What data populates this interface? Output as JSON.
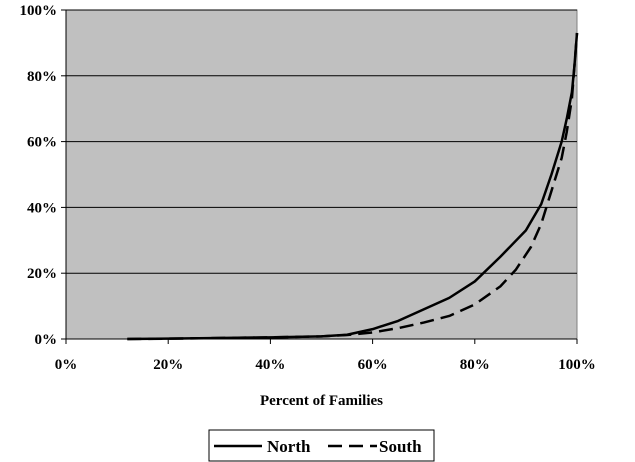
{
  "chart_data": {
    "type": "line",
    "title": "",
    "xlabel": "Percent of Families",
    "ylabel": "",
    "xlim": [
      0,
      100
    ],
    "ylim": [
      0,
      100
    ],
    "x_ticks": [
      0,
      20,
      40,
      60,
      80,
      100
    ],
    "y_ticks": [
      0,
      20,
      40,
      60,
      80,
      100
    ],
    "x_tick_labels": [
      "0%",
      "20%",
      "40%",
      "60%",
      "80%",
      "100%"
    ],
    "y_tick_labels": [
      "0%",
      "20%",
      "40%",
      "60%",
      "80%",
      "100%"
    ],
    "grid": "horizontal",
    "plot_background": "#c0c0c0",
    "legend_position": "bottom",
    "series": [
      {
        "name": "North",
        "line_style": "solid",
        "color": "#000000",
        "x": [
          12,
          20,
          30,
          40,
          50,
          55,
          60,
          65,
          70,
          75,
          80,
          85,
          90,
          93,
          95,
          97,
          98,
          99,
          99.5,
          100
        ],
        "y": [
          0,
          0.1,
          0.3,
          0.5,
          0.8,
          1.3,
          3,
          5.5,
          9,
          12.5,
          17.5,
          25,
          33,
          41,
          50,
          60,
          67,
          75,
          83,
          93
        ]
      },
      {
        "name": "South",
        "line_style": "dashed",
        "color": "#000000",
        "x": [
          12,
          20,
          30,
          40,
          50,
          55,
          60,
          65,
          70,
          75,
          80,
          85,
          88,
          91,
          93,
          95,
          97,
          98,
          99,
          99.5,
          100
        ],
        "y": [
          0,
          0.1,
          0.3,
          0.5,
          0.8,
          1.2,
          2,
          3.3,
          5,
          7,
          10.5,
          16,
          21,
          28,
          35,
          45,
          55,
          63,
          73,
          83,
          93
        ]
      }
    ]
  }
}
